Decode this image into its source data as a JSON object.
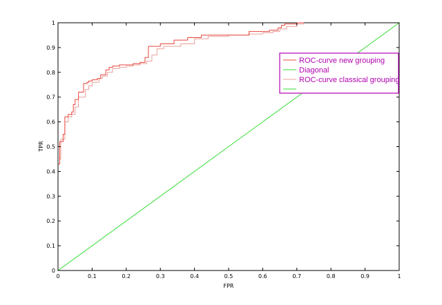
{
  "chart_data": {
    "type": "line",
    "xlabel": "FPR",
    "ylabel": "TPR",
    "xlim": [
      0,
      1
    ],
    "ylim": [
      0,
      1
    ],
    "x_ticks": [
      "0",
      "0.1",
      "0.2",
      "0.3",
      "0.4",
      "0.5",
      "0.6",
      "0.7",
      "0.8",
      "0.9",
      "1"
    ],
    "y_ticks": [
      "0",
      "0.1",
      "0.2",
      "0.3",
      "0.4",
      "0.5",
      "0.6",
      "0.7",
      "0.8",
      "0.9",
      "1"
    ],
    "grid": false,
    "legend_position": "right",
    "legend": [
      "ROC-curve new grouping",
      "Diagonal",
      "ROC-curve classical grouping",
      ""
    ],
    "series": [
      {
        "name": "ROC-curve new grouping",
        "color": "#e8463c",
        "step": true,
        "x": [
          0,
          0.005,
          0.015,
          0.02,
          0.03,
          0.04,
          0.045,
          0.05,
          0.06,
          0.075,
          0.085,
          0.09,
          0.1,
          0.115,
          0.125,
          0.14,
          0.15,
          0.16,
          0.18,
          0.2,
          0.22,
          0.24,
          0.255,
          0.265,
          0.28,
          0.3,
          0.34,
          0.38,
          0.42,
          0.48,
          0.56,
          0.6,
          0.62,
          0.645,
          0.655,
          0.665,
          0.7,
          0.72
        ],
        "y": [
          0.43,
          0.52,
          0.55,
          0.62,
          0.63,
          0.64,
          0.67,
          0.69,
          0.72,
          0.755,
          0.76,
          0.765,
          0.77,
          0.775,
          0.79,
          0.81,
          0.82,
          0.825,
          0.83,
          0.83,
          0.835,
          0.84,
          0.86,
          0.905,
          0.905,
          0.915,
          0.93,
          0.94,
          0.95,
          0.95,
          0.965,
          0.965,
          0.97,
          0.98,
          0.99,
          0.995,
          1.0,
          1.0
        ]
      },
      {
        "name": "Diagonal",
        "color": "#33dd33",
        "step": false,
        "x": [
          0,
          1
        ],
        "y": [
          0,
          1
        ]
      },
      {
        "name": "ROC-curve classical grouping",
        "color": "#e8a09a",
        "step": true,
        "x": [
          0,
          0.008,
          0.02,
          0.03,
          0.04,
          0.05,
          0.06,
          0.08,
          0.09,
          0.1,
          0.12,
          0.13,
          0.145,
          0.16,
          0.18,
          0.2,
          0.22,
          0.24,
          0.26,
          0.275,
          0.29,
          0.31,
          0.36,
          0.4,
          0.44,
          0.5,
          0.56,
          0.6,
          0.63,
          0.65,
          0.67,
          0.7,
          0.72
        ],
        "y": [
          0.45,
          0.53,
          0.6,
          0.62,
          0.63,
          0.66,
          0.7,
          0.73,
          0.745,
          0.76,
          0.775,
          0.785,
          0.8,
          0.815,
          0.82,
          0.825,
          0.83,
          0.835,
          0.845,
          0.87,
          0.895,
          0.905,
          0.915,
          0.935,
          0.945,
          0.95,
          0.955,
          0.96,
          0.965,
          0.975,
          0.985,
          0.995,
          1.0
        ]
      }
    ]
  }
}
